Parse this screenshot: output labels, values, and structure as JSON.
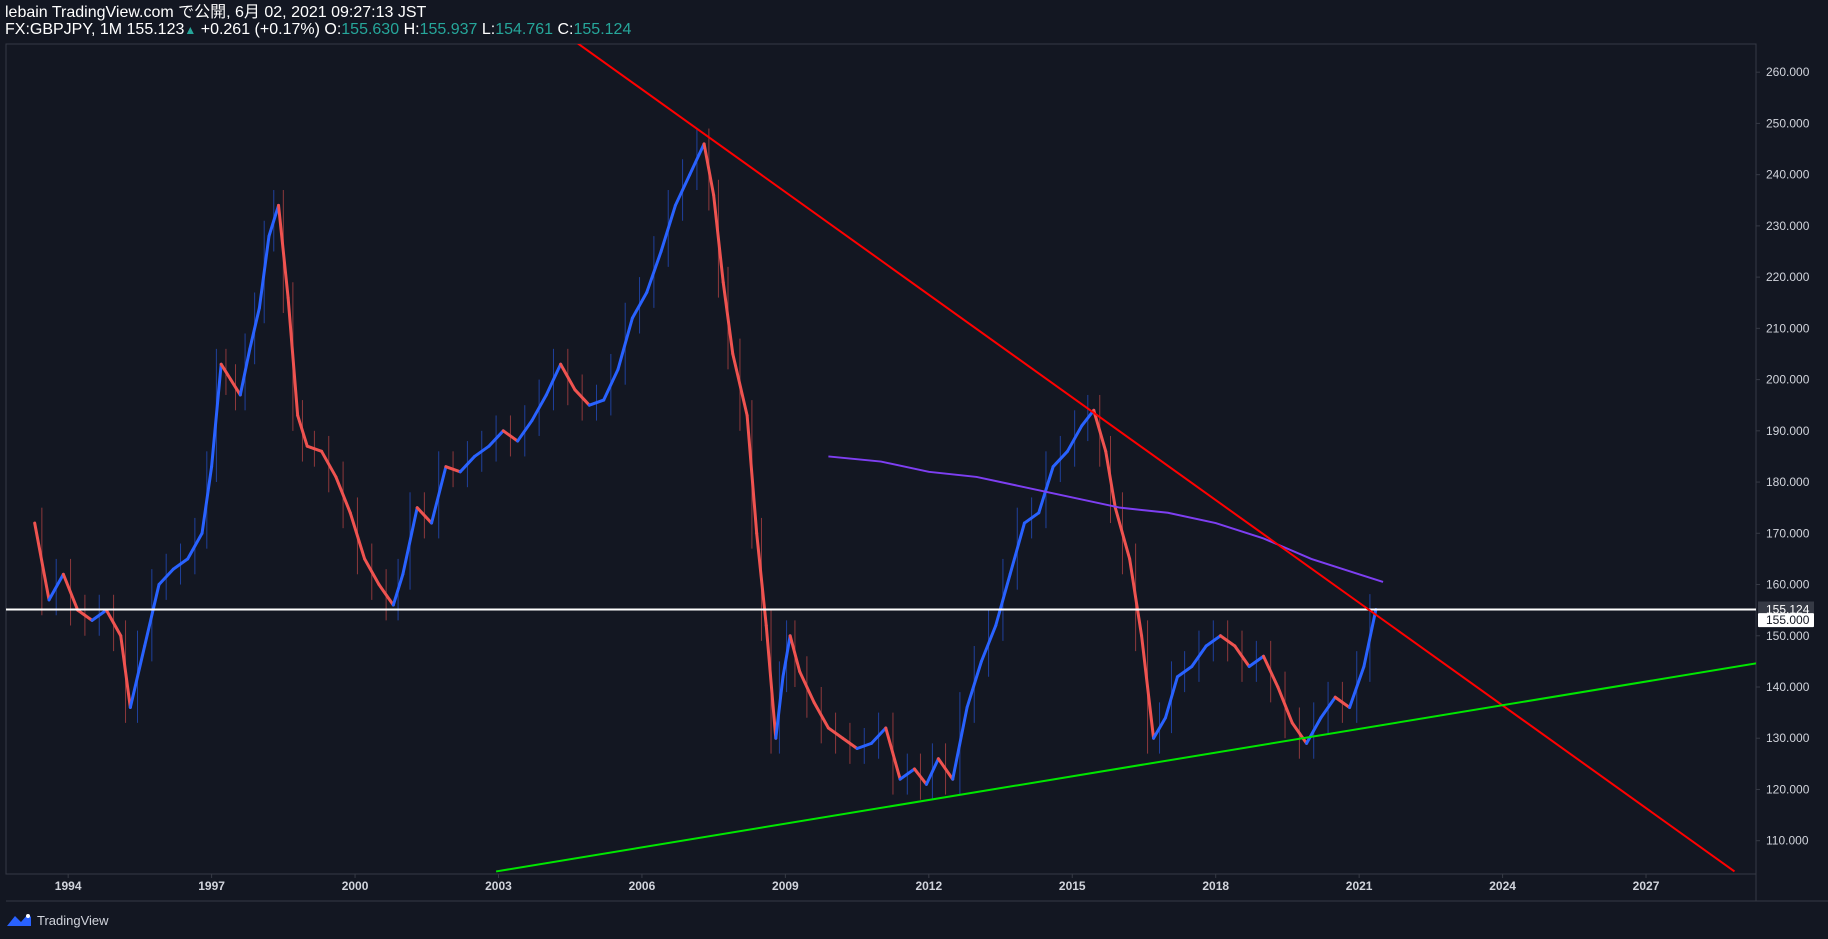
{
  "header": {
    "line1": "lebain TradingView.com で公開, 6月 02, 2021 09:27:13 JST",
    "symbol": "FX:GBPJPY, 1M",
    "price": "155.123",
    "change": "+0.261 (+0.17%)",
    "o_label": "O:",
    "o_value": "155.630",
    "h_label": "H:",
    "h_value": "155.937",
    "l_label": "L:",
    "l_value": "154.761",
    "c_label": "C:",
    "c_value": "155.124"
  },
  "footer": {
    "brand": "TradingView"
  },
  "colors": {
    "background": "#131722",
    "up_candle": "#2962ff",
    "down_candle": "#ef5350",
    "resistance_line": "#ff0000",
    "support_line": "#00e600",
    "moving_average": "#7e3ff2",
    "horizontal_line": "#ffffff",
    "axis_text": "#d1d4dc",
    "grid_border": "#363a45"
  },
  "chart_data": {
    "type": "line",
    "title": "FX:GBPJPY, 1M",
    "xlabel": "",
    "ylabel": "",
    "x_ticks": [
      "1994",
      "1997",
      "2000",
      "2003",
      "2006",
      "2009",
      "2012",
      "2015",
      "2018",
      "2021",
      "2024",
      "2027"
    ],
    "y_ticks": [
      "110.000",
      "120.000",
      "130.000",
      "140.000",
      "150.000",
      "160.000",
      "170.000",
      "180.000",
      "190.000",
      "200.000",
      "210.000",
      "220.000",
      "230.000",
      "240.000",
      "250.000",
      "260.000"
    ],
    "y_tick_values": [
      110,
      120,
      130,
      140,
      150,
      160,
      170,
      180,
      190,
      200,
      210,
      220,
      230,
      240,
      250,
      260
    ],
    "xlim": [
      1992.7,
      2029.3
    ],
    "ylim": [
      103.5,
      265.5
    ],
    "grid": false,
    "price_series": {
      "name": "",
      "x": [
        1993.3,
        1993.6,
        1993.9,
        1994.2,
        1994.5,
        1994.8,
        1995.1,
        1995.3,
        1995.6,
        1995.9,
        1996.2,
        1996.5,
        1996.8,
        1997.0,
        1997.2,
        1997.4,
        1997.6,
        1997.8,
        1998.0,
        1998.2,
        1998.4,
        1998.6,
        1998.8,
        1999.0,
        1999.3,
        1999.6,
        1999.9,
        2000.2,
        2000.5,
        2000.8,
        2001.0,
        2001.3,
        2001.6,
        2001.9,
        2002.2,
        2002.5,
        2002.8,
        2003.1,
        2003.4,
        2003.7,
        2004.0,
        2004.3,
        2004.6,
        2004.9,
        2005.2,
        2005.5,
        2005.8,
        2006.1,
        2006.4,
        2006.7,
        2007.0,
        2007.3,
        2007.5,
        2007.7,
        2007.9,
        2008.2,
        2008.4,
        2008.6,
        2008.8,
        2008.95,
        2009.1,
        2009.3,
        2009.6,
        2009.9,
        2010.2,
        2010.5,
        2010.8,
        2011.1,
        2011.4,
        2011.7,
        2011.95,
        2012.2,
        2012.5,
        2012.8,
        2013.1,
        2013.4,
        2013.7,
        2014.0,
        2014.3,
        2014.6,
        2014.9,
        2015.2,
        2015.45,
        2015.7,
        2015.9,
        2016.2,
        2016.45,
        2016.7,
        2016.95,
        2017.2,
        2017.5,
        2017.8,
        2018.1,
        2018.4,
        2018.7,
        2019.0,
        2019.3,
        2019.6,
        2019.9,
        2020.2,
        2020.5,
        2020.8,
        2021.1,
        2021.35
      ],
      "y": [
        172,
        157,
        162,
        155,
        153,
        155,
        150,
        136,
        148,
        160,
        163,
        165,
        170,
        183,
        203,
        200,
        197,
        206,
        214,
        228,
        234,
        216,
        193,
        187,
        186,
        181,
        174,
        165,
        160,
        156,
        162,
        175,
        172,
        183,
        182,
        185,
        187,
        190,
        188,
        192,
        197,
        203,
        198,
        195,
        196,
        202,
        212,
        217,
        225,
        234,
        240,
        246,
        236,
        219,
        205,
        193,
        170,
        152,
        130,
        142,
        150,
        143,
        137,
        132,
        130,
        128,
        129,
        132,
        122,
        124,
        121,
        126,
        122,
        136,
        145,
        152,
        162,
        172,
        174,
        183,
        186,
        191,
        194,
        186,
        175,
        165,
        150,
        130,
        134,
        142,
        144,
        148,
        150,
        148,
        144,
        146,
        140,
        133,
        129,
        134,
        138,
        136,
        144,
        155.124
      ]
    },
    "moving_average": {
      "name": "",
      "x": [
        2009.9,
        2011.0,
        2012.0,
        2013.0,
        2014.0,
        2015.0,
        2016.0,
        2017.0,
        2018.0,
        2019.0,
        2020.0,
        2021.0,
        2021.5
      ],
      "y": [
        185,
        184,
        182,
        181,
        179,
        177,
        175,
        174,
        172,
        169,
        165,
        162,
        160.5
      ]
    },
    "resistance_trendline": {
      "x": [
        2004.6,
        2028.85
      ],
      "y": [
        266,
        104
      ]
    },
    "support_trendline": {
      "x": [
        2002.95,
        2031.5
      ],
      "y": [
        104,
        148
      ]
    },
    "horizontal_line": {
      "y": 155.124
    },
    "price_labels": [
      "155.124",
      "155.000"
    ],
    "price_label_values": [
      155.124,
      155.0
    ]
  }
}
